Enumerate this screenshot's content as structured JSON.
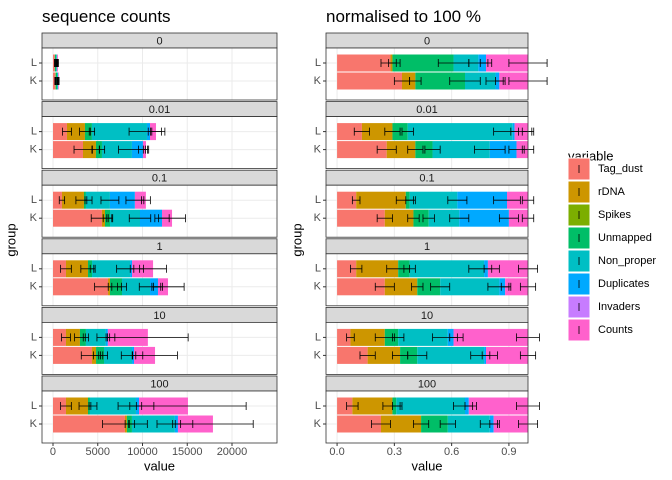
{
  "chart_data": [
    {
      "type": "bar",
      "orientation": "horizontal",
      "stacked": true,
      "title": "sequence counts",
      "x_label": "value",
      "y_label": "group",
      "grid": true,
      "facets": [
        "0",
        "0.01",
        "0.1",
        "1",
        "10",
        "100"
      ],
      "categories": [
        "L",
        "K"
      ],
      "xlim": [
        -1229,
        25028
      ],
      "xticks": [
        0,
        5000,
        10000,
        15000,
        20000
      ],
      "series": [
        {
          "name": "Tag_dust",
          "color": "#F8766D",
          "values": [
            [
              200,
              250
            ],
            [
              1560,
              3350
            ],
            [
              1000,
              5470
            ],
            [
              1450,
              6150
            ],
            [
              1450,
              4360
            ],
            [
              1450,
              8040
            ]
          ],
          "errors": [
            [
              30,
              40
            ],
            [
              500,
              1000
            ],
            [
              300,
              1200
            ],
            [
              600,
              1500
            ],
            [
              500,
              1200
            ],
            [
              600,
              2500
            ]
          ]
        },
        {
          "name": "rDNA",
          "color": "#CD9600",
          "values": [
            [
              10,
              50
            ],
            [
              2010,
              1450
            ],
            [
              2460,
              340
            ],
            [
              2460,
              220
            ],
            [
              1560,
              450
            ],
            [
              2460,
              220
            ]
          ],
          "errors": [
            [
              10,
              20
            ],
            [
              600,
              400
            ],
            [
              900,
              200
            ],
            [
              800,
              200
            ],
            [
              600,
              300
            ],
            [
              1000,
              200
            ]
          ]
        },
        {
          "name": "Spikes",
          "color": "#7CAE00",
          "values": [
            [
              0,
              0
            ],
            [
              0,
              0
            ],
            [
              0,
              0
            ],
            [
              0,
              0
            ],
            [
              0,
              0
            ],
            [
              0,
              0
            ]
          ],
          "errors": null
        },
        {
          "name": "Unmapped",
          "color": "#00BE67",
          "values": [
            [
              150,
              150
            ],
            [
              780,
              670
            ],
            [
              220,
              560
            ],
            [
              450,
              1340
            ],
            [
              670,
              890
            ],
            [
              220,
              560
            ]
          ],
          "errors": [
            [
              30,
              30
            ],
            [
              300,
              300
            ],
            [
              100,
              200
            ],
            [
              200,
              500
            ],
            [
              300,
              400
            ],
            [
              100,
              300
            ]
          ]
        },
        {
          "name": "Non_proper",
          "color": "#00BFC4",
          "values": [
            [
              80,
              100
            ],
            [
              6150,
              3350
            ],
            [
              2680,
              3350
            ],
            [
              4250,
              3130
            ],
            [
              2230,
              3130
            ],
            [
              5140,
              4800
            ]
          ],
          "errors": [
            [
              40,
              50
            ],
            [
              2000,
              1500
            ],
            [
              1000,
              1200
            ],
            [
              1500,
              1200
            ],
            [
              1000,
              1200
            ],
            [
              2000,
              2000
            ]
          ]
        },
        {
          "name": "Duplicates",
          "color": "#00A9FF",
          "values": [
            [
              20,
              10
            ],
            [
              340,
              1230
            ],
            [
              2790,
              2460
            ],
            [
              220,
              890
            ],
            [
              220,
              220
            ],
            [
              340,
              340
            ]
          ],
          "errors": [
            [
              10,
              10
            ],
            [
              200,
              500
            ],
            [
              1000,
              800
            ],
            [
              200,
              500
            ],
            [
              200,
              200
            ],
            [
              300,
              300
            ]
          ]
        },
        {
          "name": "Invaders",
          "color": "#C77CFF",
          "values": [
            [
              0,
              0
            ],
            [
              0,
              0
            ],
            [
              0,
              0
            ],
            [
              0,
              0
            ],
            [
              0,
              0
            ],
            [
              0,
              0
            ]
          ],
          "errors": null
        },
        {
          "name": "Counts",
          "color": "#FF61CC",
          "values": [
            [
              100,
              80
            ],
            [
              670,
              340
            ],
            [
              1230,
              1120
            ],
            [
              2350,
              1120
            ],
            [
              4470,
              2350
            ],
            [
              5470,
              3910
            ]
          ],
          "errors": [
            [
              50,
              40
            ],
            [
              600,
              300
            ],
            [
              500,
              1500
            ],
            [
              1500,
              1800
            ],
            [
              4500,
              2500
            ],
            [
              6500,
              4500
            ]
          ]
        }
      ]
    },
    {
      "type": "bar",
      "orientation": "horizontal",
      "stacked": true,
      "title": "normalised to 100 %",
      "x_label": "value",
      "y_label": "group",
      "grid": true,
      "legend_title": "variable",
      "facets": [
        "0",
        "0.01",
        "0.1",
        "1",
        "10",
        "100"
      ],
      "categories": [
        "L",
        "K"
      ],
      "xlim": [
        -0.058,
        1.0
      ],
      "xticks": [
        {
          "value": 0,
          "label": "0.0"
        },
        0.3,
        0.6,
        0.9
      ],
      "series": [
        {
          "name": "Tag_dust",
          "color": "#F8766D",
          "values": [
            [
              0.28,
              0.34
            ],
            [
              0.13,
              0.26
            ],
            [
              0.1,
              0.25
            ],
            [
              0.1,
              0.25
            ],
            [
              0.07,
              0.16
            ],
            [
              0.08,
              0.23
            ]
          ],
          "errors": [
            [
              0.05,
              0.04
            ],
            [
              0.04,
              0.05
            ],
            [
              0.02,
              0.04
            ],
            [
              0.03,
              0.05
            ],
            [
              0.02,
              0.04
            ],
            [
              0.03,
              0.05
            ]
          ]
        },
        {
          "name": "rDNA",
          "color": "#CD9600",
          "values": [
            [
              0.01,
              0.07
            ],
            [
              0.16,
              0.15
            ],
            [
              0.26,
              0.15
            ],
            [
              0.22,
              0.17
            ],
            [
              0.18,
              0.17
            ],
            [
              0.21,
              0.21
            ]
          ],
          "errors": [
            [
              0.02,
              0.03
            ],
            [
              0.04,
              0.04
            ],
            [
              0.05,
              0.03
            ],
            [
              0.06,
              0.03
            ],
            [
              0.05,
              0.04
            ],
            [
              0.05,
              0.04
            ]
          ]
        },
        {
          "name": "Spikes",
          "color": "#7CAE00",
          "values": [
            [
              0,
              0
            ],
            [
              0,
              0
            ],
            [
              0,
              0
            ],
            [
              0,
              0
            ],
            [
              0,
              0
            ],
            [
              0,
              0
            ]
          ],
          "errors": null
        },
        {
          "name": "Unmapped",
          "color": "#00BE67",
          "values": [
            [
              0.32,
              0.26
            ],
            [
              0.08,
              0.09
            ],
            [
              0.02,
              0.08
            ],
            [
              0.06,
              0.12
            ],
            [
              0.07,
              0.09
            ],
            [
              0.02,
              0.14
            ]
          ],
          "errors": [
            [
              0.08,
              0.08
            ],
            [
              0.03,
              0.04
            ],
            [
              0.02,
              0.03
            ],
            [
              0.03,
              0.05
            ],
            [
              0.03,
              0.05
            ],
            [
              0.02,
              0.04
            ]
          ]
        },
        {
          "name": "Non_proper",
          "color": "#00BFC4",
          "values": [
            [
              0.13,
              0.16
            ],
            [
              0.55,
              0.3
            ],
            [
              0.25,
              0.16
            ],
            [
              0.39,
              0.31
            ],
            [
              0.26,
              0.35
            ],
            [
              0.36,
              0.22
            ]
          ],
          "errors": [
            [
              0.05,
              0.05
            ],
            [
              0.1,
              0.08
            ],
            [
              0.05,
              0.05
            ],
            [
              0.08,
              0.06
            ],
            [
              0.08,
              0.07
            ],
            [
              0.06,
              0.05
            ]
          ]
        },
        {
          "name": "Duplicates",
          "color": "#00A9FF",
          "values": [
            [
              0.04,
              0.02
            ],
            [
              0.01,
              0.14
            ],
            [
              0.26,
              0.26
            ],
            [
              0.02,
              0.03
            ],
            [
              0.03,
              0.01
            ],
            [
              0.02,
              0.02
            ]
          ],
          "errors": [
            [
              0.03,
              0.02
            ],
            [
              0.02,
              0.04
            ],
            [
              0.07,
              0.05
            ],
            [
              0.02,
              0.02
            ],
            [
              0.02,
              0.02
            ],
            [
              0.02,
              0.02
            ]
          ]
        },
        {
          "name": "Invaders",
          "color": "#C77CFF",
          "values": [
            [
              0,
              0
            ],
            [
              0,
              0
            ],
            [
              0,
              0
            ],
            [
              0,
              0
            ],
            [
              0,
              0
            ],
            [
              0,
              0
            ]
          ],
          "errors": null
        },
        {
          "name": "Counts",
          "color": "#FF61CC",
          "values": [
            [
              0.22,
              0.15
            ],
            [
              0.07,
              0.06
            ],
            [
              0.11,
              0.1
            ],
            [
              0.21,
              0.12
            ],
            [
              0.39,
              0.22
            ],
            [
              0.31,
              0.18
            ]
          ],
          "errors": [
            [
              0.1,
              0.1
            ],
            [
              0.03,
              0.03
            ],
            [
              0.03,
              0.03
            ],
            [
              0.05,
              0.04
            ],
            [
              0.06,
              0.04
            ],
            [
              0.06,
              0.05
            ]
          ]
        }
      ]
    }
  ]
}
